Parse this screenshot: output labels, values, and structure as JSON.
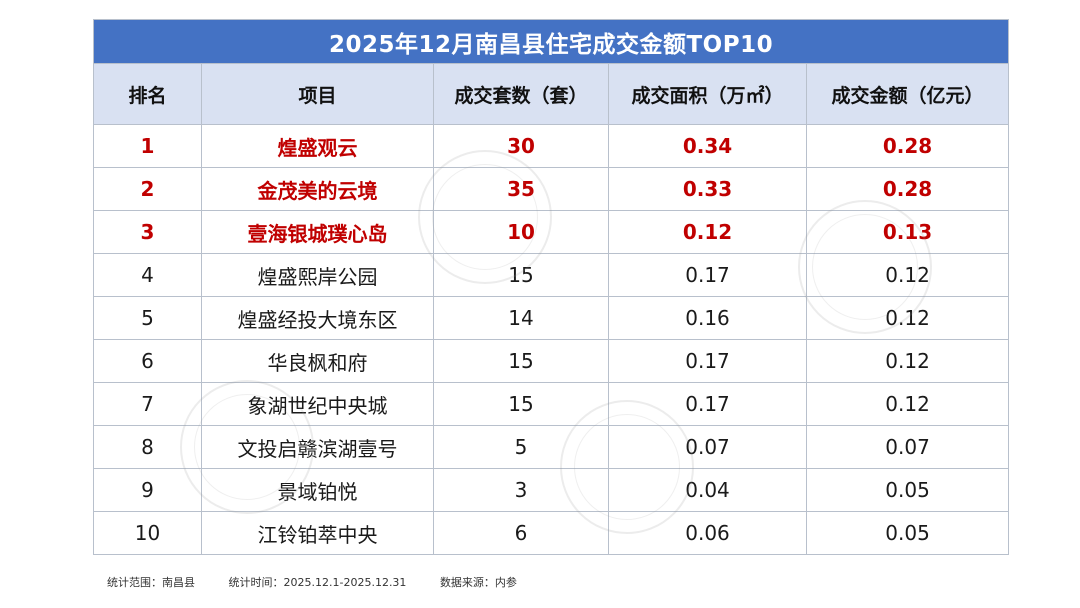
{
  "title": "2025年12月南昌县住宅成交金额TOP10",
  "headers": [
    "排名",
    "项目",
    "成交套数（套）",
    "成交面积（万㎡）",
    "成交金额（亿元）"
  ],
  "rows": [
    {
      "rank": "1",
      "project": "煌盛观云",
      "units": "30",
      "area": "0.34",
      "amount": "0.28",
      "highlight": true
    },
    {
      "rank": "2",
      "project": "金茂美的云境",
      "units": "35",
      "area": "0.33",
      "amount": "0.28",
      "highlight": true
    },
    {
      "rank": "3",
      "project": "壹海银城璞心岛",
      "units": "10",
      "area": "0.12",
      "amount": "0.13",
      "highlight": true
    },
    {
      "rank": "4",
      "project": "煌盛熙岸公园",
      "units": "15",
      "area": "0.17",
      "amount": "0.12",
      "highlight": false
    },
    {
      "rank": "5",
      "project": "煌盛经投大境东区",
      "units": "14",
      "area": "0.16",
      "amount": "0.12",
      "highlight": false
    },
    {
      "rank": "6",
      "project": "华良枫和府",
      "units": "15",
      "area": "0.17",
      "amount": "0.12",
      "highlight": false
    },
    {
      "rank": "7",
      "project": "象湖世纪中央城",
      "units": "15",
      "area": "0.17",
      "amount": "0.12",
      "highlight": false
    },
    {
      "rank": "8",
      "project": "文投启赣滨湖壹号",
      "units": "5",
      "area": "0.07",
      "amount": "0.07",
      "highlight": false
    },
    {
      "rank": "9",
      "project": "景域铂悦",
      "units": "3",
      "area": "0.04",
      "amount": "0.05",
      "highlight": false
    },
    {
      "rank": "10",
      "project": "江铃铂萃中央",
      "units": "6",
      "area": "0.06",
      "amount": "0.05",
      "highlight": false
    }
  ],
  "footer": {
    "scope": "统计范围：南昌县",
    "period": "统计时间：2025.12.1-2025.12.31",
    "source": "数据来源：内参"
  },
  "colors": {
    "title_bg": "#4472c4",
    "header_bg": "#d9e1f2",
    "highlight_text": "#c00000"
  },
  "chart_data": {
    "type": "table",
    "title": "2025年12月南昌县住宅成交金额TOP10",
    "columns": [
      "排名",
      "项目",
      "成交套数（套）",
      "成交面积（万㎡）",
      "成交金额（亿元）"
    ],
    "rows": [
      [
        1,
        "煌盛观云",
        30,
        0.34,
        0.28
      ],
      [
        2,
        "金茂美的云境",
        35,
        0.33,
        0.28
      ],
      [
        3,
        "壹海银城璞心岛",
        10,
        0.12,
        0.13
      ],
      [
        4,
        "煌盛熙岸公园",
        15,
        0.17,
        0.12
      ],
      [
        5,
        "煌盛经投大境东区",
        14,
        0.16,
        0.12
      ],
      [
        6,
        "华良枫和府",
        15,
        0.17,
        0.12
      ],
      [
        7,
        "象湖世纪中央城",
        15,
        0.17,
        0.12
      ],
      [
        8,
        "文投启赣滨湖壹号",
        5,
        0.07,
        0.07
      ],
      [
        9,
        "景域铂悦",
        3,
        0.04,
        0.05
      ],
      [
        10,
        "江铃铂萃中央",
        6,
        0.06,
        0.05
      ]
    ]
  }
}
